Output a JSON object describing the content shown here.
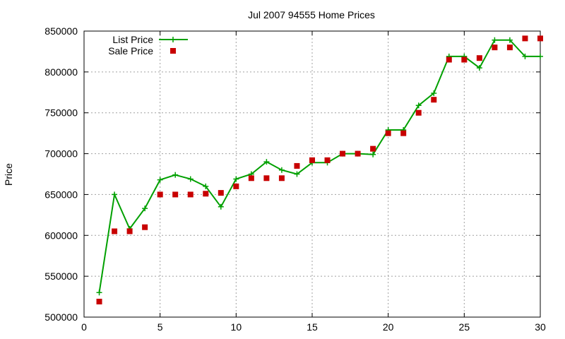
{
  "chart_data": {
    "type": "line",
    "title": "Jul 2007 94555 Home Prices",
    "xlabel": "",
    "ylabel": "Price",
    "xlim": [
      0,
      30
    ],
    "ylim": [
      500000,
      850000
    ],
    "xticks": [
      "0",
      "5",
      "10",
      "15",
      "20",
      "25",
      "30"
    ],
    "yticks": [
      "500000",
      "550000",
      "600000",
      "650000",
      "700000",
      "750000",
      "800000",
      "850000"
    ],
    "grid": true,
    "legend_position": "top-left",
    "x": [
      1,
      2,
      3,
      4,
      5,
      6,
      7,
      8,
      9,
      10,
      11,
      12,
      13,
      14,
      15,
      16,
      17,
      18,
      19,
      20,
      21,
      22,
      23,
      24,
      25,
      26,
      27,
      28,
      29,
      30
    ],
    "series": [
      {
        "name": "List Price",
        "style": "line-with-plus-markers",
        "color": "#00a000",
        "values": [
          530000,
          650000,
          608000,
          633000,
          668000,
          674000,
          669000,
          660000,
          635000,
          669000,
          675000,
          690000,
          680000,
          675000,
          689000,
          689000,
          700000,
          700000,
          699000,
          729000,
          729000,
          759000,
          774000,
          819000,
          819000,
          805000,
          839000,
          839000,
          819000,
          819000
        ]
      },
      {
        "name": "Sale Price",
        "style": "square-markers",
        "color": "#c80000",
        "values": [
          519000,
          605000,
          605000,
          610000,
          650000,
          650000,
          650000,
          651000,
          652000,
          660000,
          670000,
          670000,
          670000,
          685000,
          692000,
          692000,
          700000,
          700000,
          706000,
          725000,
          725000,
          750000,
          766000,
          815000,
          815000,
          817000,
          830000,
          830000,
          841000,
          841000
        ]
      }
    ]
  }
}
